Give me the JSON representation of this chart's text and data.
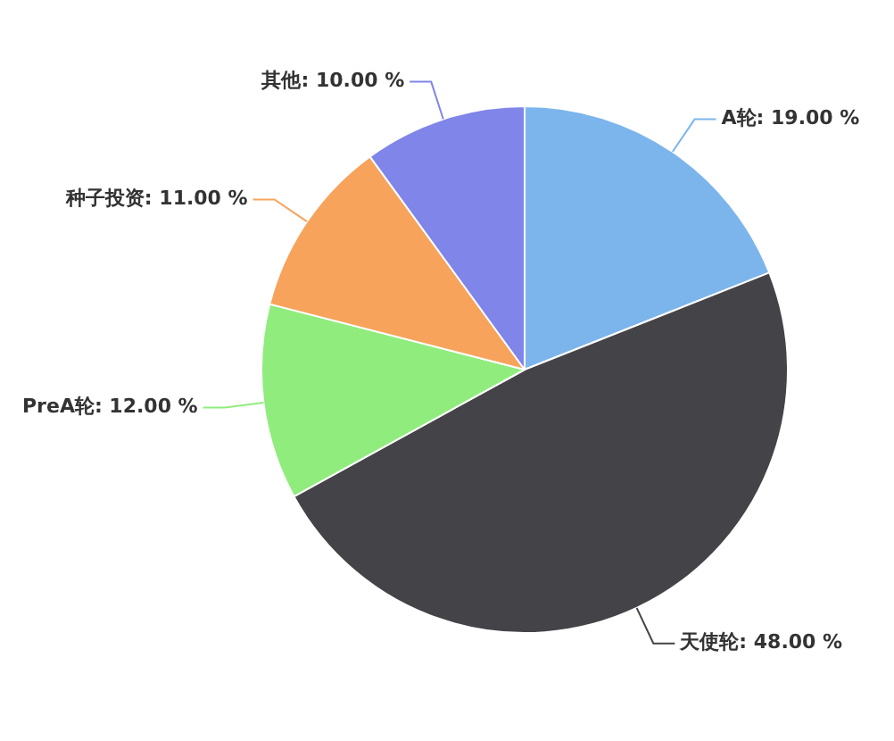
{
  "chart_data": {
    "type": "pie",
    "categories": [
      "A轮",
      "天使轮",
      "PreA轮",
      "种子投资",
      "其他"
    ],
    "values": [
      19,
      48,
      12,
      11,
      10
    ],
    "colors": [
      "#7cb5ec",
      "#434348",
      "#90ed7d",
      "#f7a35c",
      "#8085e9"
    ],
    "value_labels": [
      "19.00 %",
      "48.00 %",
      "12.00 %",
      "11.00 %",
      "10.00 %"
    ],
    "legend": false
  }
}
